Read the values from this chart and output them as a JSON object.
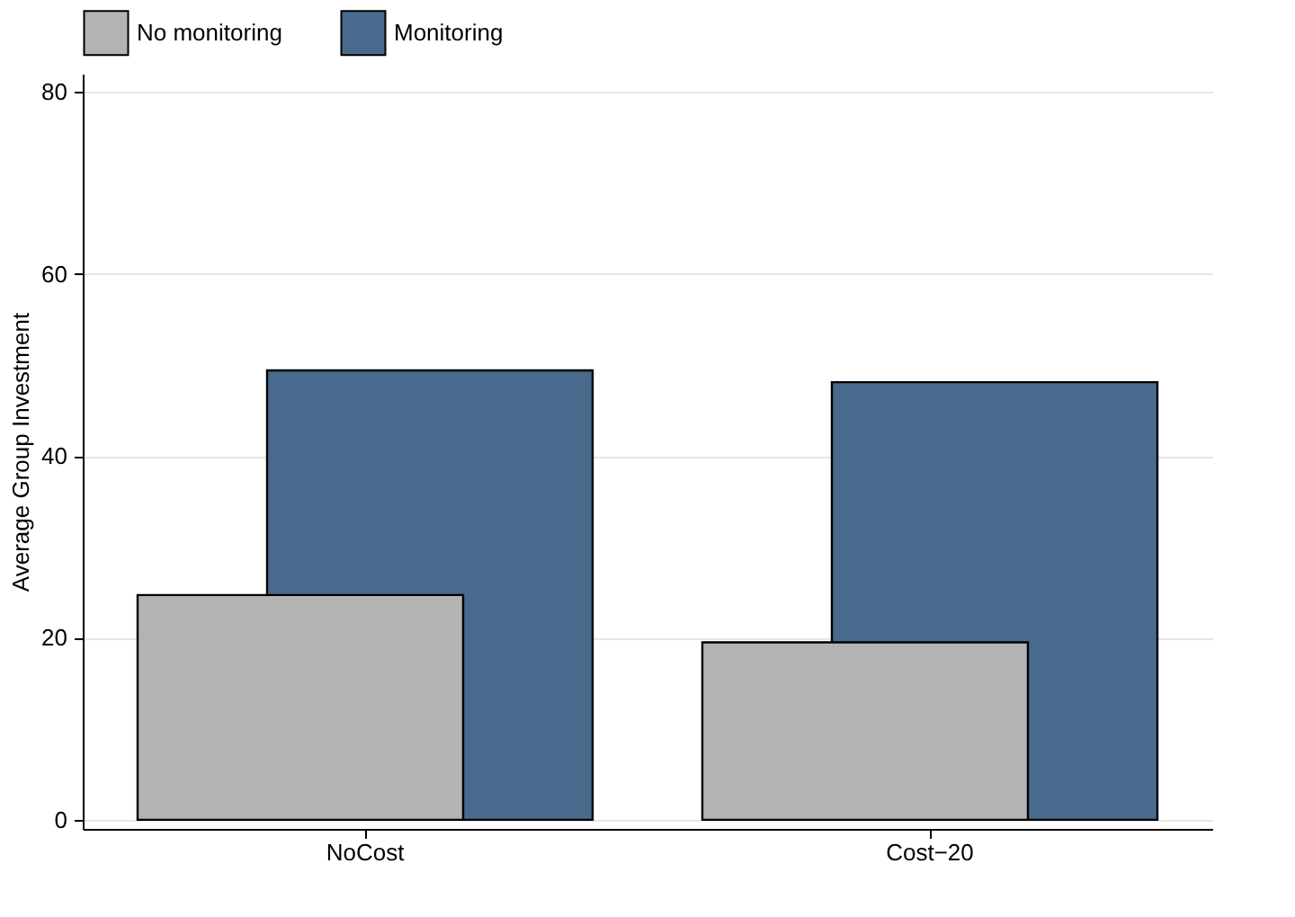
{
  "chart_data": {
    "type": "bar",
    "ylabel": "Average Group Investment",
    "categories": [
      "NoCost",
      "Cost−20"
    ],
    "series": [
      {
        "name": "No monitoring",
        "color": "#b3b3b3",
        "values": [
          24.7,
          19.5
        ]
      },
      {
        "name": "Monitoring",
        "color": "#486a8c",
        "values": [
          49.4,
          48.1
        ]
      }
    ],
    "ylim": [
      -1,
      82
    ],
    "yticks": [
      0,
      20,
      40,
      60,
      80
    ],
    "grid": "y",
    "legend": "top"
  }
}
